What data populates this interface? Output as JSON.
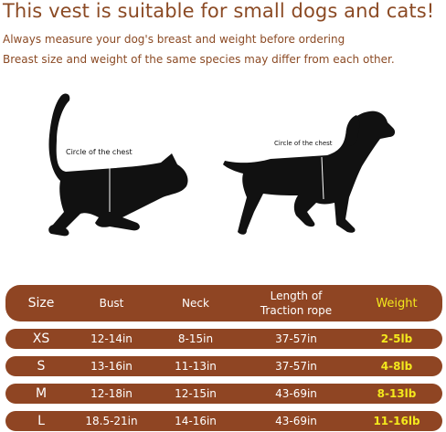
{
  "headline": "This vest is suitable for small dogs and cats!",
  "notes": [
    "Always measure your dog's breast and weight before ordering",
    "Breast size and weight of the same species may differ from each other."
  ],
  "cat_label": "Circle of the chest",
  "dog_label": "Circle of the chest",
  "icons": [
    "cat-silhouette-icon",
    "dog-silhouette-icon"
  ],
  "colors": {
    "brand": "#8f4523",
    "text": "#8b4a24",
    "weight_accent": "#f3e81d"
  },
  "size_table": {
    "headers": {
      "size": "Size",
      "bust": "Bust",
      "neck": "Neck",
      "rope": "Length of Traction rope",
      "weight": "Weight"
    },
    "rows": [
      {
        "size": "XS",
        "bust": "12-14in",
        "neck": "8-15in",
        "rope": "37-57in",
        "weight": "2-5lb"
      },
      {
        "size": "S",
        "bust": "13-16in",
        "neck": "11-13in",
        "rope": "37-57in",
        "weight": "4-8lb"
      },
      {
        "size": "M",
        "bust": "12-18in",
        "neck": "12-15in",
        "rope": "43-69in",
        "weight": "8-13lb"
      },
      {
        "size": "L",
        "bust": "18.5-21in",
        "neck": "14-16in",
        "rope": "43-69in",
        "weight": "11-16lb"
      }
    ]
  }
}
